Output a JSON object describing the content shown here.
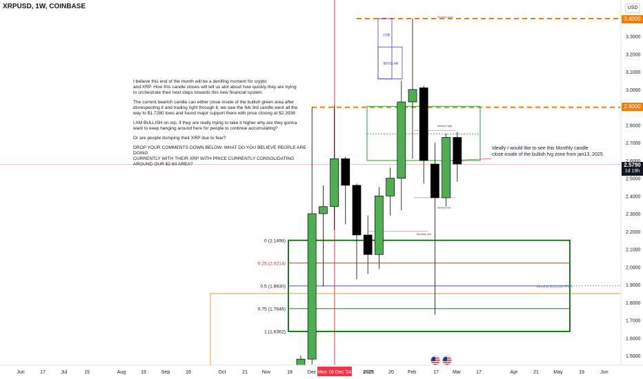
{
  "header": {
    "symbol": "XRPUSD, 1W, COINBASE"
  },
  "currency": "USD",
  "price_tags": {
    "level_34": "3.4000",
    "level_29": "2.9000",
    "current_price": "2.5790",
    "countdown": "1d 19h"
  },
  "annotation": {
    "paragraphs": [
      "I believe this end of the month will be a denifing moment for crypto\nand XRP. How this candle closes will tell us alot about how quickly they are trying\nto orchestrate their next steps towards this new financial system.",
      "The current bearish candle can either close inside of the bullish  green area after\ndisrespecting it and trading right through it, we saw the feb 3rd candle went all the\nway to $1.7280 lows and found major support there with price closing at $2.3938",
      "I AM BULLISH on xrp, if they are really trying to take it higher why are they gonna\nwant to keep hanging around here for people to continue accumulating?",
      "Or are people dumping their XRP due to fear?",
      "DROP YOUR COMMENTS DOWN BELOW. WHAT DO YOU BELIEVE PEOPLE ARE DOING\nCURRENTLY WITH THEIR XRP WITH PRICE CURRENTLY CONSOLIDATING\nAROUND OUR $2.60 AREA?"
    ]
  },
  "side_note": "Ideally I would like to see this Monthly candle\nclose inside of the bullish fvg zone from jan13, 2025",
  "colors": {
    "bull": "#4caf50",
    "bear": "#000000",
    "zone_green": "#1b7a1b",
    "fvg_green": "#4caf50",
    "orange": "#f57c00",
    "fib_red": "#d32f2f",
    "blue_box": "#3f3fbf",
    "date_marker": "#f23645"
  },
  "icons": [
    "us-flag-icon",
    "us-flag-icon"
  ],
  "chart_data": {
    "type": "candlestick",
    "title": "XRPUSD, 1W, COINBASE",
    "ylim": [
      1.45,
      3.45
    ],
    "y_ticks": [
      "3.4000",
      "3.3000",
      "3.2000",
      "3.1000",
      "3.0000",
      "2.9000",
      "2.8000",
      "2.7000",
      "2.6000",
      "2.5000",
      "2.4000",
      "2.3000",
      "2.2000",
      "2.1000",
      "2.0000",
      "1.9000",
      "1.8000",
      "1.7000",
      "1.6000",
      "1.5000"
    ],
    "x_labels": [
      "Jun",
      "17",
      "Jul",
      "15",
      "Aug",
      "19",
      "Sep",
      "16",
      "Oct",
      "21",
      "Nov",
      "18",
      "Dec",
      "Mon 16 Dec '24",
      "2025",
      "20",
      "Feb",
      "17",
      "Mar",
      "17",
      "Apr",
      "21",
      "May",
      "19",
      "Jun"
    ],
    "highlighted_date": "Mon 16 Dec '24",
    "candles": [
      {
        "o": 1.4,
        "h": 1.5,
        "l": 1.38,
        "c": 1.48
      },
      {
        "o": 1.48,
        "h": 2.9,
        "l": 1.45,
        "c": 2.3
      },
      {
        "o": 2.3,
        "h": 2.46,
        "l": 1.89,
        "c": 2.34
      },
      {
        "o": 2.34,
        "h": 2.91,
        "l": 2.21,
        "c": 2.61
      },
      {
        "o": 2.61,
        "h": 2.62,
        "l": 2.24,
        "c": 2.46
      },
      {
        "o": 2.46,
        "h": 2.47,
        "l": 1.93,
        "c": 2.18
      },
      {
        "o": 2.18,
        "h": 2.29,
        "l": 1.96,
        "c": 2.07
      },
      {
        "o": 2.07,
        "h": 2.45,
        "l": 1.99,
        "c": 2.4
      },
      {
        "o": 2.4,
        "h": 2.56,
        "l": 2.29,
        "c": 2.5
      },
      {
        "o": 2.5,
        "h": 3.05,
        "l": 2.32,
        "c": 2.93
      },
      {
        "o": 2.93,
        "h": 3.4,
        "l": 2.61,
        "c": 3.0
      },
      {
        "o": 3.01,
        "h": 3.02,
        "l": 2.47,
        "c": 2.6
      },
      {
        "o": 2.58,
        "h": 2.7,
        "l": 1.73,
        "c": 2.39
      },
      {
        "o": 2.39,
        "h": 2.75,
        "l": 2.34,
        "c": 2.73
      },
      {
        "o": 2.73,
        "h": 2.76,
        "l": 2.48,
        "c": 2.58
      }
    ],
    "horizontal_levels": [
      {
        "price": 3.4,
        "label": "3.4000",
        "style": "dashed"
      },
      {
        "price": 2.9,
        "label": "2.9000",
        "style": "dashed"
      }
    ],
    "fib_retracement": [
      {
        "label": "0 (2.1498)",
        "price": 2.1498
      },
      {
        "label": "0.25 (2.0214)",
        "price": 2.0214
      },
      {
        "label": "0.5 (1.8930)",
        "price": 1.893
      },
      {
        "label": "0.75 (1.7646)",
        "price": 1.7646
      },
      {
        "label": "1 (1.6362)",
        "price": 1.6362
      }
    ],
    "zone_labels": {
      "monthly_fvg": "Monthly BULLISH FVG",
      "ob": "+OB",
      "fvg_4h": "BFVG 4H",
      "monthly_high": "Monthly high",
      "weekly_high": "weekly high",
      "weekly_low": "weekly low",
      "monthly_low": "Monthly low"
    }
  }
}
